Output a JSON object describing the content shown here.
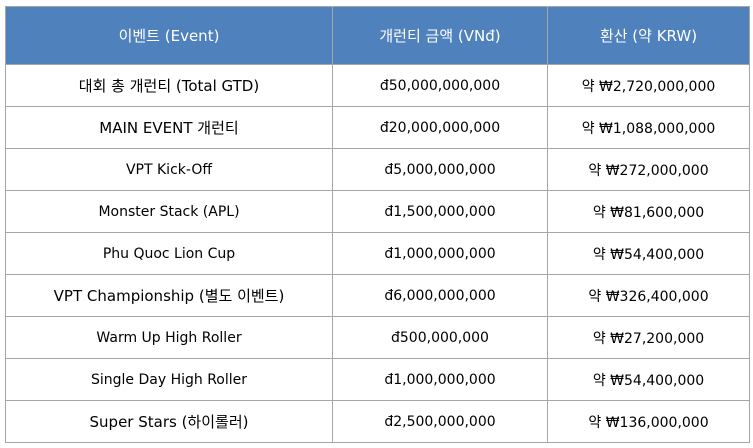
{
  "header": {
    "event": "이벤트 (Event)",
    "guarantee": "개런티 금액 (VNđ)",
    "krw": "환산 (약 KRW)"
  },
  "rows": [
    {
      "event": "대회 총 개런티 (Total GTD)",
      "vnd": "đ50,000,000,000",
      "krw": "약 ₩2,720,000,000"
    },
    {
      "event": "MAIN EVENT 개런티",
      "vnd": "đ20,000,000,000",
      "krw": "약 ₩1,088,000,000"
    },
    {
      "event": "VPT Kick-Off",
      "vnd": "đ5,000,000,000",
      "krw": "약 ₩272,000,000"
    },
    {
      "event": "Monster Stack (APL)",
      "vnd": "đ1,500,000,000",
      "krw": "약 ₩81,600,000"
    },
    {
      "event": "Phu Quoc Lion Cup",
      "vnd": "đ1,000,000,000",
      "krw": "약 ₩54,400,000"
    },
    {
      "event": "VPT Championship (별도 이벤트)",
      "vnd": "đ6,000,000,000",
      "krw": "약 ₩326,400,000"
    },
    {
      "event": "Warm Up High Roller",
      "vnd": "đ500,000,000",
      "krw": "약 ₩27,200,000"
    },
    {
      "event": "Single Day High Roller",
      "vnd": "đ1,000,000,000",
      "krw": "약 ₩54,400,000"
    },
    {
      "event": "Super Stars (하이롤러)",
      "vnd": "đ2,500,000,000",
      "krw": "약 ₩136,000,000"
    }
  ]
}
